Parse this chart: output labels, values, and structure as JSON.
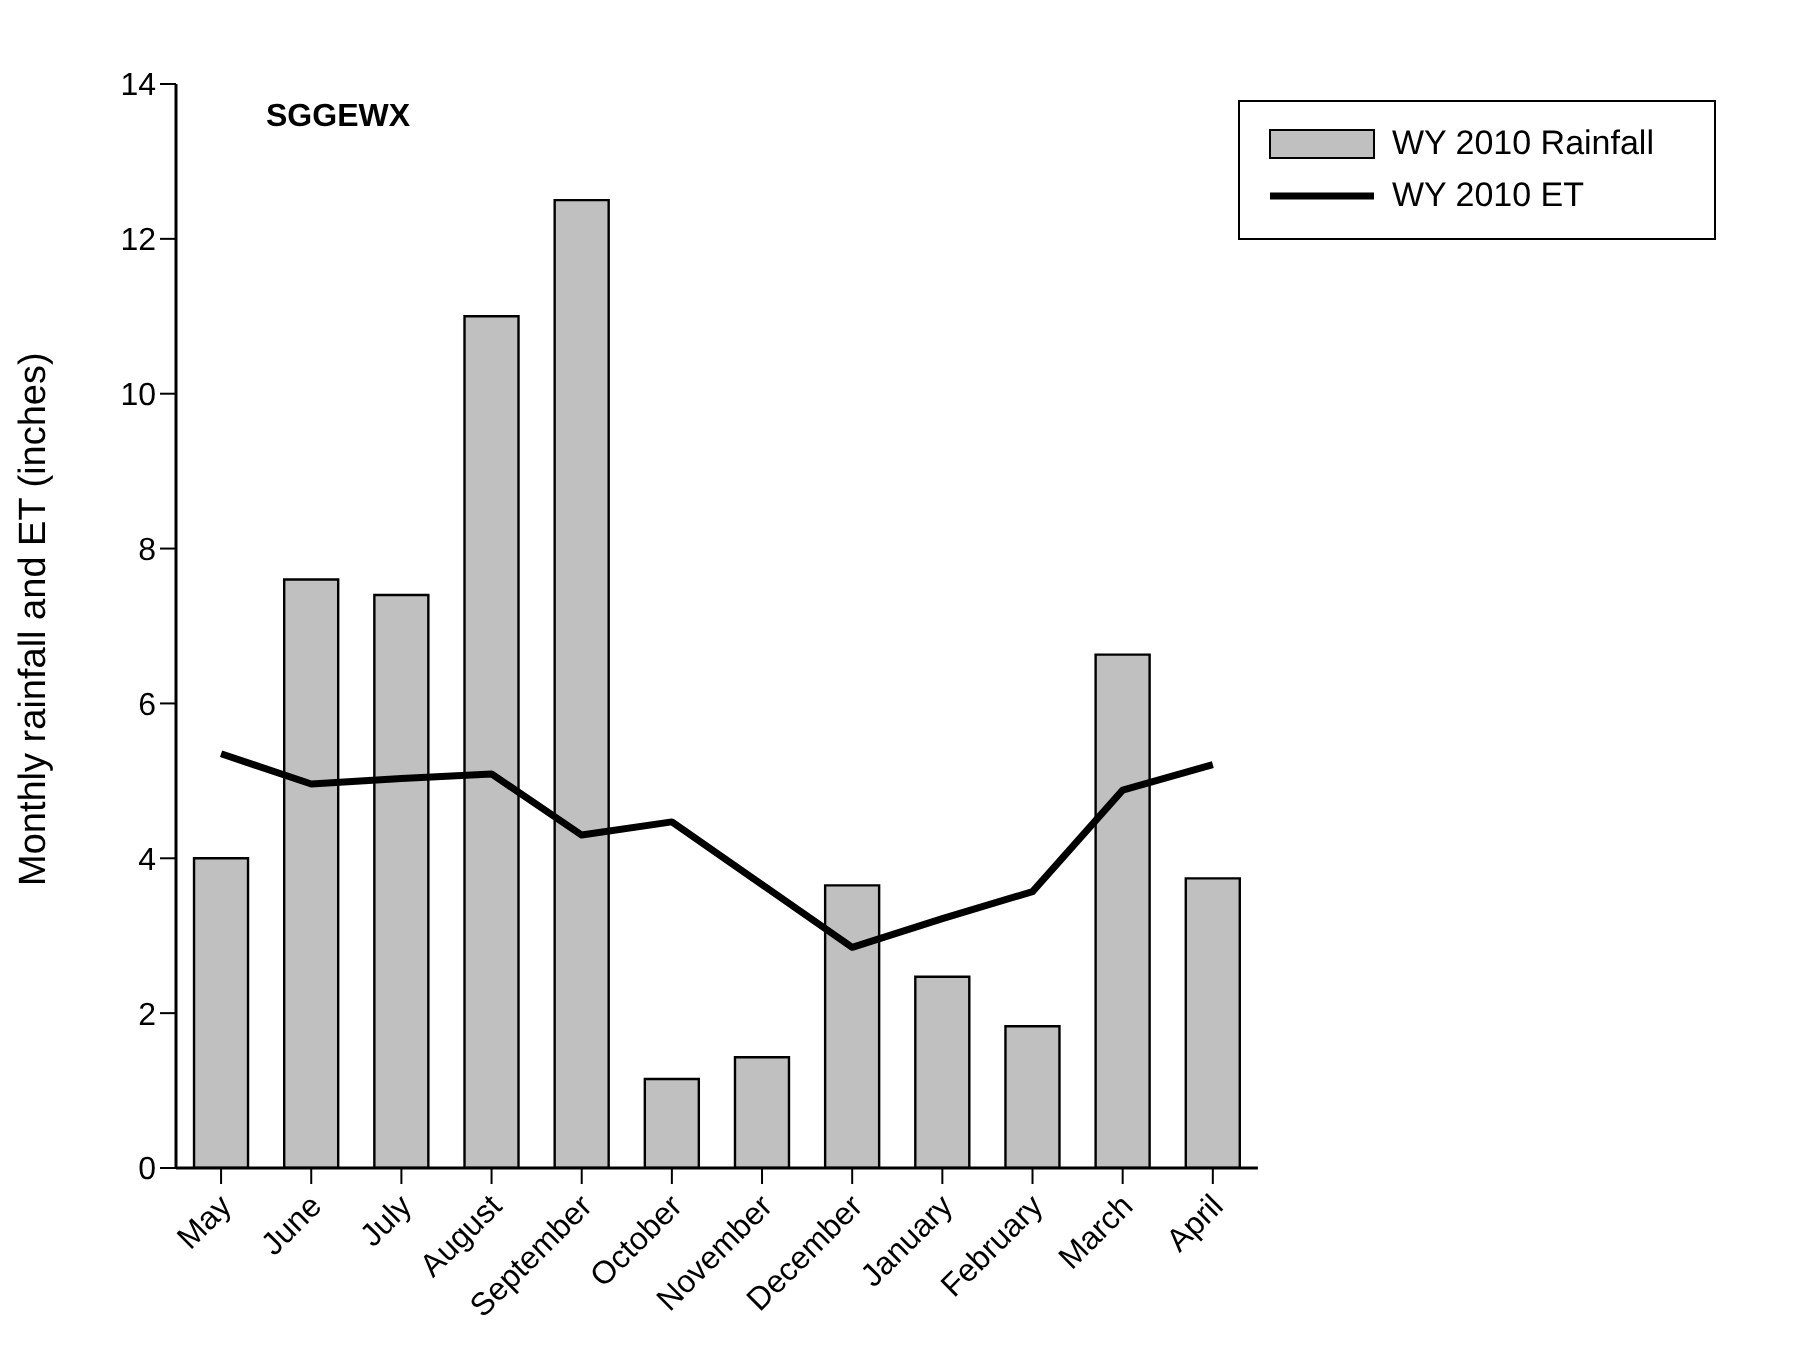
{
  "chart_data": {
    "type": "bar",
    "title": "SGGEWX",
    "ylabel": "Monthly rainfall and ET   (inches)",
    "categories": [
      "May",
      "June",
      "July",
      "August",
      "September",
      "October",
      "November",
      "December",
      "January",
      "February",
      "March",
      "April"
    ],
    "series": [
      {
        "name": "WY 2010 Rainfall",
        "color": "#c0c0c0",
        "values": [
          4.0,
          7.6,
          7.4,
          11.0,
          12.5,
          1.15,
          1.43,
          3.65,
          2.47,
          1.83,
          6.63,
          3.74
        ]
      },
      {
        "name": "WY 2010 ET",
        "type": "line",
        "color": "#000000",
        "values": [
          5.35,
          4.96,
          5.03,
          5.09,
          4.3,
          4.47,
          3.66,
          2.85,
          3.22,
          3.57,
          4.88,
          5.21
        ]
      }
    ],
    "ylim": [
      0,
      14
    ],
    "yticks": [
      0,
      2,
      4,
      6,
      8,
      10,
      12,
      14
    ],
    "legend": "top right",
    "marker": "none",
    "line_style": "solid"
  }
}
